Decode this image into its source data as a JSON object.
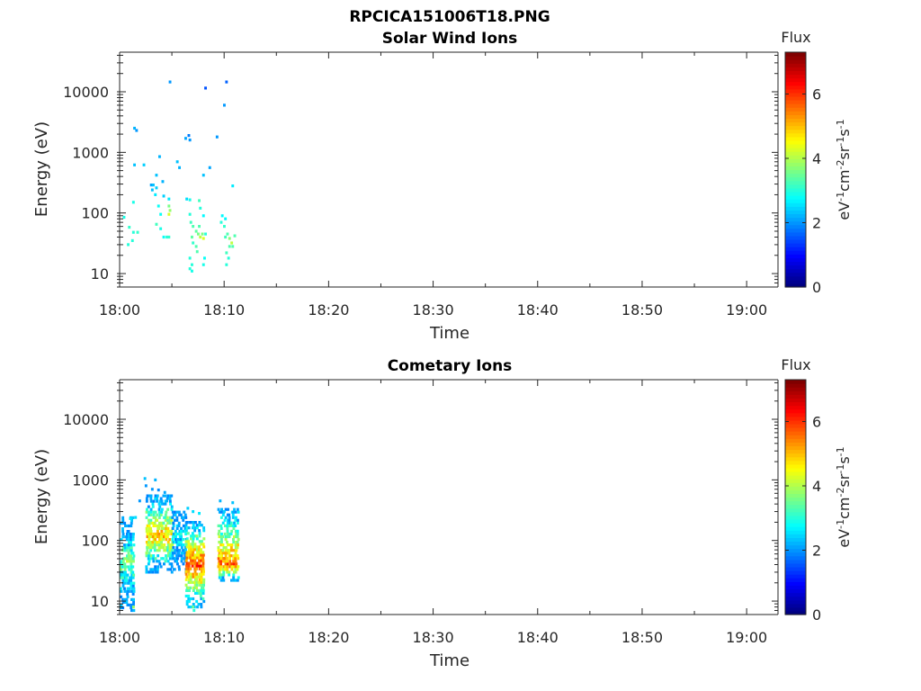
{
  "figure": {
    "title": "RPCICA151006T18.PNG"
  },
  "chart_data": [
    {
      "type": "heatmap",
      "title": "Solar Wind Ions",
      "xlabel": "Time",
      "ylabel": "Energy (eV)",
      "x_ticks": [
        "18:00",
        "18:10",
        "18:20",
        "18:30",
        "18:40",
        "18:50",
        "19:00"
      ],
      "x_range_minutes": [
        0,
        63
      ],
      "y_scale": "log",
      "y_ticks": [
        "10",
        "100",
        "1000",
        "10000"
      ],
      "y_range": [
        6,
        45000
      ],
      "colorbar": {
        "label": "Flux",
        "units": "eV-1cm-2sr-1s-1",
        "ticks": [
          "0",
          "2",
          "4",
          "6"
        ],
        "range": [
          0,
          7.3
        ],
        "colormap": "jet"
      },
      "points": [
        [
          4.7,
          14500,
          2.0
        ],
        [
          8.1,
          11500,
          1.5
        ],
        [
          10.1,
          14500,
          1.6
        ],
        [
          9.9,
          6000,
          2.0
        ],
        [
          1.3,
          2500,
          2.2
        ],
        [
          1.5,
          2300,
          2.0
        ],
        [
          6.2,
          1700,
          2.1
        ],
        [
          6.5,
          1900,
          1.8
        ],
        [
          6.6,
          1600,
          2.0
        ],
        [
          9.2,
          1800,
          2.0
        ],
        [
          3.7,
          850,
          2.2
        ],
        [
          5.4,
          700,
          2.3
        ],
        [
          1.3,
          620,
          2.3
        ],
        [
          2.2,
          620,
          2.4
        ],
        [
          5.6,
          560,
          2.2
        ],
        [
          8.5,
          560,
          2.1
        ],
        [
          3.4,
          420,
          2.3
        ],
        [
          7.9,
          420,
          2.3
        ],
        [
          4.0,
          330,
          2.2
        ],
        [
          2.9,
          290,
          2.1
        ],
        [
          3.1,
          290,
          2.3
        ],
        [
          3.4,
          260,
          2.4
        ],
        [
          3.0,
          240,
          2.3
        ],
        [
          10.7,
          280,
          2.6
        ],
        [
          3.3,
          200,
          2.6
        ],
        [
          4.1,
          190,
          2.4
        ],
        [
          4.6,
          170,
          2.6
        ],
        [
          1.2,
          150,
          2.9
        ],
        [
          6.3,
          170,
          2.5
        ],
        [
          6.6,
          165,
          2.9
        ],
        [
          7.5,
          160,
          3.2
        ],
        [
          3.6,
          130,
          2.8
        ],
        [
          4.6,
          130,
          3.6
        ],
        [
          4.7,
          110,
          3.8
        ],
        [
          4.6,
          95,
          4.3
        ],
        [
          7.6,
          120,
          3.0
        ],
        [
          7.9,
          90,
          2.7
        ],
        [
          3.8,
          95,
          2.8
        ],
        [
          0.3,
          85,
          2.9
        ],
        [
          9.7,
          90,
          2.7
        ],
        [
          10.0,
          80,
          2.7
        ],
        [
          6.6,
          95,
          3.0
        ],
        [
          6.7,
          70,
          3.2
        ],
        [
          6.9,
          60,
          3.3
        ],
        [
          7.2,
          50,
          3.4
        ],
        [
          7.4,
          45,
          3.6
        ],
        [
          7.6,
          40,
          4.1
        ],
        [
          6.8,
          40,
          3.4
        ],
        [
          6.9,
          32,
          3.1
        ],
        [
          7.2,
          28,
          3.3
        ],
        [
          7.3,
          23,
          3.3
        ],
        [
          6.6,
          18,
          3.0
        ],
        [
          6.8,
          14,
          3.0
        ],
        [
          6.6,
          12,
          3.0
        ],
        [
          6.8,
          11,
          2.9
        ],
        [
          7.5,
          60,
          3.3
        ],
        [
          7.8,
          45,
          3.6
        ],
        [
          7.9,
          38,
          4.3
        ],
        [
          8.1,
          45,
          3.0
        ],
        [
          8.0,
          18,
          2.8
        ],
        [
          7.9,
          14,
          2.9
        ],
        [
          0.8,
          58,
          3.1
        ],
        [
          1.2,
          48,
          3.0
        ],
        [
          1.1,
          35,
          3.0
        ],
        [
          0.7,
          30,
          3.0
        ],
        [
          1.6,
          48,
          3.1
        ],
        [
          4.1,
          40,
          2.8
        ],
        [
          4.4,
          40,
          3.0
        ],
        [
          3.8,
          55,
          2.9
        ],
        [
          3.4,
          65,
          3.2
        ],
        [
          4.6,
          40,
          3.1
        ],
        [
          9.6,
          70,
          3.0
        ],
        [
          9.9,
          60,
          3.1
        ],
        [
          10.2,
          45,
          3.3
        ],
        [
          10.4,
          38,
          3.7
        ],
        [
          10.6,
          32,
          4.1
        ],
        [
          10.9,
          42,
          3.3
        ],
        [
          10.7,
          28,
          3.3
        ],
        [
          10.4,
          28,
          3.3
        ],
        [
          10.1,
          22,
          3.2
        ],
        [
          10.1,
          14,
          3.0
        ],
        [
          10.3,
          18,
          3.0
        ],
        [
          10.0,
          40,
          3.2
        ],
        [
          6.9,
          6,
          2.5
        ]
      ]
    },
    {
      "type": "heatmap",
      "title": "Cometary Ions",
      "xlabel": "Time",
      "ylabel": "Energy (eV)",
      "x_ticks": [
        "18:00",
        "18:10",
        "18:20",
        "18:30",
        "18:40",
        "18:50",
        "19:00"
      ],
      "x_range_minutes": [
        0,
        63
      ],
      "y_scale": "log",
      "y_ticks": [
        "10",
        "100",
        "1000",
        "10000"
      ],
      "y_range": [
        6,
        45000
      ],
      "colorbar": {
        "label": "Flux",
        "units": "eV-1cm-2sr-1s-1",
        "ticks": [
          "0",
          "2",
          "4",
          "6"
        ],
        "range": [
          0,
          7.3
        ],
        "colormap": "jet"
      },
      "clusters": [
        {
          "t": [
            0.0,
            1.2
          ],
          "e": [
            7,
            250
          ],
          "peak": 4.3,
          "peak_e": 45
        },
        {
          "t": [
            2.5,
            5.0
          ],
          "e": [
            30,
            600
          ],
          "peak": 5.7,
          "peak_e": 120
        },
        {
          "t": [
            5.0,
            6.4
          ],
          "e": [
            30,
            320
          ],
          "peak": 3.4,
          "peak_e": 120
        },
        {
          "t": [
            6.3,
            8.1
          ],
          "e": [
            8,
            200
          ],
          "peak": 6.6,
          "peak_e": 40
        },
        {
          "t": [
            9.4,
            11.3
          ],
          "e": [
            22,
            330
          ],
          "peak": 6.3,
          "peak_e": 40
        }
      ],
      "points": [
        [
          2.3,
          1050,
          2.3
        ],
        [
          3.3,
          1000,
          2.2
        ],
        [
          2.4,
          800,
          2.0
        ],
        [
          3.0,
          700,
          2.0
        ],
        [
          3.6,
          680,
          1.9
        ],
        [
          4.2,
          620,
          2.1
        ],
        [
          1.8,
          450,
          2.0
        ],
        [
          4.4,
          450,
          2.2
        ],
        [
          9.5,
          450,
          2.2
        ],
        [
          10.7,
          420,
          2.3
        ],
        [
          6.4,
          340,
          2.4
        ],
        [
          6.9,
          300,
          2.5
        ],
        [
          7.5,
          280,
          2.6
        ],
        [
          9.9,
          300,
          2.4
        ],
        [
          0.9,
          230,
          2.6
        ],
        [
          1.4,
          240,
          2.5
        ],
        [
          6.9,
          8,
          3.5
        ],
        [
          7.0,
          7,
          3.0
        ],
        [
          1.2,
          8,
          3.8
        ]
      ]
    }
  ]
}
